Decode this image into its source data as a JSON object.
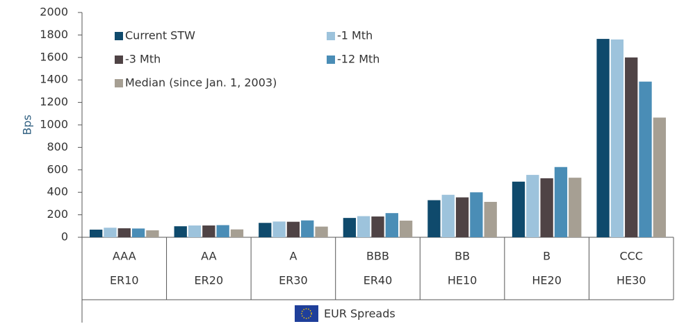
{
  "chart_data": {
    "type": "bar",
    "y_label": "Bps",
    "categories": [
      "AAA",
      "AA",
      "A",
      "BBB",
      "BB",
      "B",
      "CCC"
    ],
    "indices": [
      "ER10",
      "ER20",
      "ER30",
      "ER40",
      "HE10",
      "HE20",
      "HE30"
    ],
    "group_label": "EUR Spreads",
    "series": [
      {
        "name": "Current STW",
        "color": "#0f4a6c",
        "values": [
          68,
          98,
          128,
          172,
          330,
          495,
          1765
        ]
      },
      {
        "name": "-1 Mth",
        "color": "#9dc3dc",
        "values": [
          85,
          105,
          140,
          188,
          378,
          555,
          1760
        ]
      },
      {
        "name": "-3 Mth",
        "color": "#4f4345",
        "values": [
          80,
          105,
          138,
          185,
          355,
          525,
          1600
        ]
      },
      {
        "name": "-12 Mth",
        "color": "#4a8db6",
        "values": [
          78,
          108,
          150,
          215,
          400,
          625,
          1385
        ]
      },
      {
        "name": "Median (since Jan. 1, 2003)",
        "color": "#a69f93",
        "values": [
          62,
          70,
          95,
          148,
          315,
          530,
          1065
        ]
      }
    ],
    "ylim": [
      0,
      2000
    ],
    "yticks": [
      0,
      200,
      400,
      600,
      800,
      1000,
      1200,
      1400,
      1600,
      1800,
      2000
    ],
    "grid": false,
    "legend": "upper-left"
  }
}
